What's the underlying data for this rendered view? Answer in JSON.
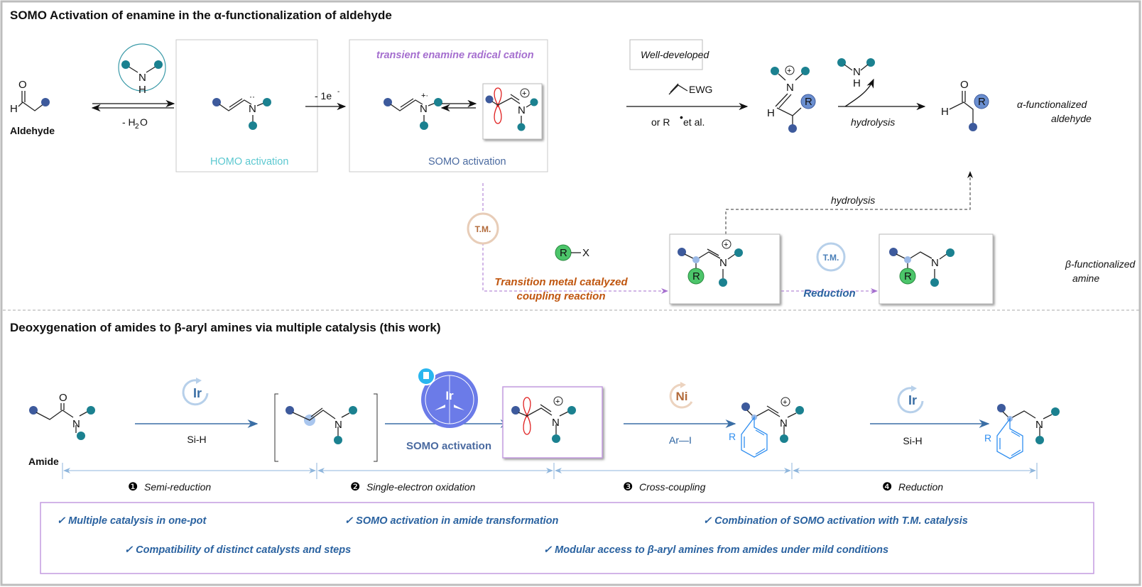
{
  "top": {
    "title": "SOMO Activation of enamine in the α-functionalization of aldehyde",
    "aldehyde_label": "Aldehyde",
    "minus_water": "- H",
    "water_sub": "2",
    "water_o": "O",
    "homo_label": "HOMO activation",
    "minus_e": "- 1e",
    "minus_e_sup": "-",
    "transient_label": "transient enamine radical cation",
    "somo_label": "SOMO activation",
    "well_developed": "Well-developed",
    "ewg": "EWG",
    "or_r": "or  R",
    "et_al": " et al.",
    "hydrolysis_1": "hydrolysis",
    "alpha_product_1": "α-functionalized",
    "alpha_product_2": "aldehyde",
    "hydrolysis_2": "hydrolysis",
    "tm_label": "T.M.",
    "rx_r": "R",
    "rx_x": "X",
    "coupling_1": "Transition metal catalyzed",
    "coupling_2": "coupling reaction",
    "reduction": "Reduction",
    "beta_product_1": "β-functionalized",
    "beta_product_2": "amine",
    "atoms": {
      "O": "O",
      "H": "H",
      "N": "N",
      "R": "R"
    }
  },
  "bottom": {
    "title": "Deoxygenation of amides to β-aryl amines via multiple catalysis (this work)",
    "amide_label": "Amide",
    "ir": "Ir",
    "ni": "Ni",
    "si_h": "Si-H",
    "somo_activation": "SOMO activation",
    "ar_i": "Ar—I",
    "steps": [
      {
        "num": "❶",
        "label": "Semi-reduction"
      },
      {
        "num": "❷",
        "label": "Single-electron oxidation"
      },
      {
        "num": "❸",
        "label": "Cross-coupling"
      },
      {
        "num": "❹",
        "label": "Reduction"
      }
    ],
    "checks": [
      "✓ Multiple catalysis in one-pot",
      "✓ SOMO activation in amide transformation",
      "✓  Combination of SOMO activation with T.M. catalysis",
      "✓ Compatibility of distinct catalysts and steps",
      "✓ Modular access to β-aryl amines from amides under mild conditions"
    ]
  },
  "colors": {
    "dot_dark": "#3d5a9c",
    "dot_teal": "#1b8190",
    "homo": "#5cc8d0",
    "somo": "#4a6aa0",
    "transient": "#a56fcf",
    "coupling": "#c0560f",
    "reduction": "#2a62a0",
    "orbital": "#e02020",
    "tm_orange": "#c8875a",
    "ir_blue": "#6fa0d0",
    "photocat": "#6b7be8",
    "green_r": "#4cc56a"
  }
}
